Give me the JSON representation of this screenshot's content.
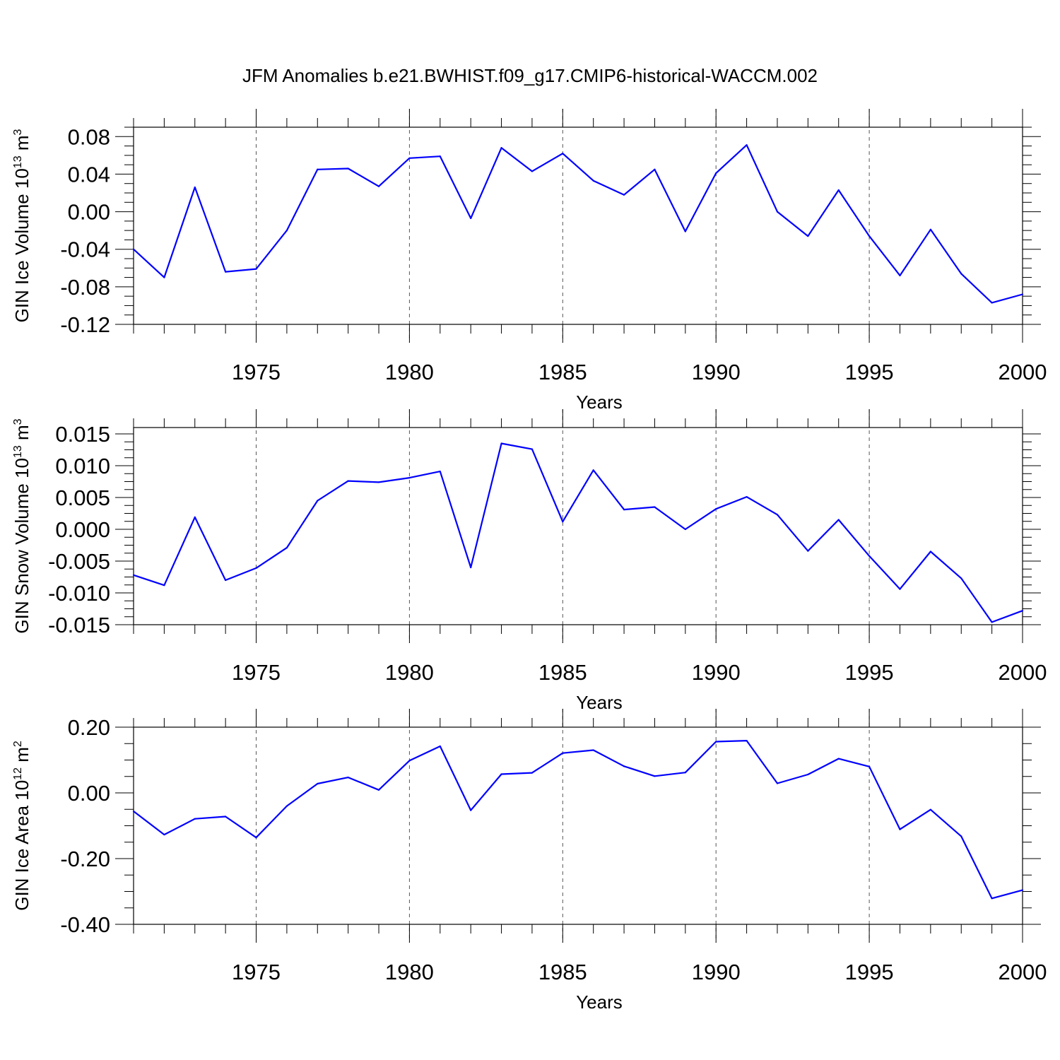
{
  "chart_data": [
    {
      "type": "line",
      "title": "JFM Anomalies b.e21.BWHIST.f09_g17.CMIP6-historical-WACCM.002",
      "xlabel": "Years",
      "ylabel": "GIN Ice Volume 10",
      "ylabel_exponent": "13",
      "ylabel_unit": " m",
      "ylabel_unit_exponent": "3",
      "xlim": [
        1971,
        2000
      ],
      "ylim": [
        -0.12,
        0.09
      ],
      "x_ticks": [
        1975,
        1980,
        1985,
        1990,
        1995,
        2000
      ],
      "y_ticks": [
        "0.08",
        "0.04",
        "0.00",
        "-0.04",
        "-0.08",
        "-0.12"
      ],
      "y_tick_values": [
        0.08,
        0.04,
        0.0,
        -0.04,
        -0.08,
        -0.12
      ],
      "grid": "vertical dashed at major x ticks",
      "color": "#0000ff",
      "x": [
        1971,
        1972,
        1973,
        1974,
        1975,
        1976,
        1977,
        1978,
        1979,
        1980,
        1981,
        1982,
        1983,
        1984,
        1985,
        1986,
        1987,
        1988,
        1989,
        1990,
        1991,
        1992,
        1993,
        1994,
        1995,
        1996,
        1997,
        1998,
        1999,
        2000
      ],
      "values": [
        -0.04,
        -0.07,
        0.026,
        -0.064,
        -0.061,
        -0.02,
        0.045,
        0.046,
        0.027,
        0.057,
        0.059,
        -0.007,
        0.068,
        0.043,
        0.062,
        0.033,
        0.018,
        0.045,
        -0.021,
        0.041,
        0.071,
        0.0,
        -0.026,
        0.023,
        -0.026,
        -0.068,
        -0.019,
        -0.066,
        -0.097,
        -0.088
      ]
    },
    {
      "type": "line",
      "xlabel": "Years",
      "ylabel": "GIN Snow Volume 10",
      "ylabel_exponent": "13",
      "ylabel_unit": " m",
      "ylabel_unit_exponent": "3",
      "xlim": [
        1971,
        2000
      ],
      "ylim": [
        -0.015,
        0.016
      ],
      "x_ticks": [
        1975,
        1980,
        1985,
        1990,
        1995,
        2000
      ],
      "y_ticks": [
        "0.015",
        "0.010",
        "0.005",
        "0.000",
        "-0.005",
        "-0.010",
        "-0.015"
      ],
      "y_tick_values": [
        0.015,
        0.01,
        0.005,
        0.0,
        -0.005,
        -0.01,
        -0.015
      ],
      "grid": "vertical dashed at major x ticks",
      "color": "#0000ff",
      "x": [
        1971,
        1972,
        1973,
        1974,
        1975,
        1976,
        1977,
        1978,
        1979,
        1980,
        1981,
        1982,
        1983,
        1984,
        1985,
        1986,
        1987,
        1988,
        1989,
        1990,
        1991,
        1992,
        1993,
        1994,
        1995,
        1996,
        1997,
        1998,
        1999,
        2000
      ],
      "values": [
        -0.0072,
        -0.0088,
        0.0019,
        -0.008,
        -0.0061,
        -0.0029,
        0.0045,
        0.0076,
        0.0074,
        0.0081,
        0.0091,
        -0.006,
        0.0135,
        0.0126,
        0.0012,
        0.0093,
        0.0031,
        0.0035,
        0.0,
        0.0032,
        0.0051,
        0.0023,
        -0.0034,
        0.0015,
        -0.0042,
        -0.0094,
        -0.0035,
        -0.0077,
        -0.0146,
        -0.0128
      ]
    },
    {
      "type": "line",
      "xlabel": "Years",
      "ylabel": "GIN Ice Area 10",
      "ylabel_exponent": "12",
      "ylabel_unit": " m",
      "ylabel_unit_exponent": "2",
      "xlim": [
        1971,
        2000
      ],
      "ylim": [
        -0.4,
        0.2
      ],
      "x_ticks": [
        1975,
        1980,
        1985,
        1990,
        1995,
        2000
      ],
      "y_ticks": [
        "0.20",
        "0.00",
        "-0.20",
        "-0.40"
      ],
      "y_tick_values": [
        0.2,
        0.0,
        -0.2,
        -0.4
      ],
      "grid": "vertical dashed at major x ticks",
      "color": "#0000ff",
      "x": [
        1971,
        1972,
        1973,
        1974,
        1975,
        1976,
        1977,
        1978,
        1979,
        1980,
        1981,
        1982,
        1983,
        1984,
        1985,
        1986,
        1987,
        1988,
        1989,
        1990,
        1991,
        1992,
        1993,
        1994,
        1995,
        1996,
        1997,
        1998,
        1999,
        2000
      ],
      "values": [
        -0.056,
        -0.127,
        -0.079,
        -0.072,
        -0.136,
        -0.04,
        0.028,
        0.047,
        0.009,
        0.098,
        0.142,
        -0.053,
        0.057,
        0.061,
        0.121,
        0.13,
        0.081,
        0.051,
        0.062,
        0.156,
        0.159,
        0.029,
        0.056,
        0.104,
        0.08,
        -0.111,
        -0.051,
        -0.132,
        -0.321,
        -0.296
      ]
    }
  ]
}
